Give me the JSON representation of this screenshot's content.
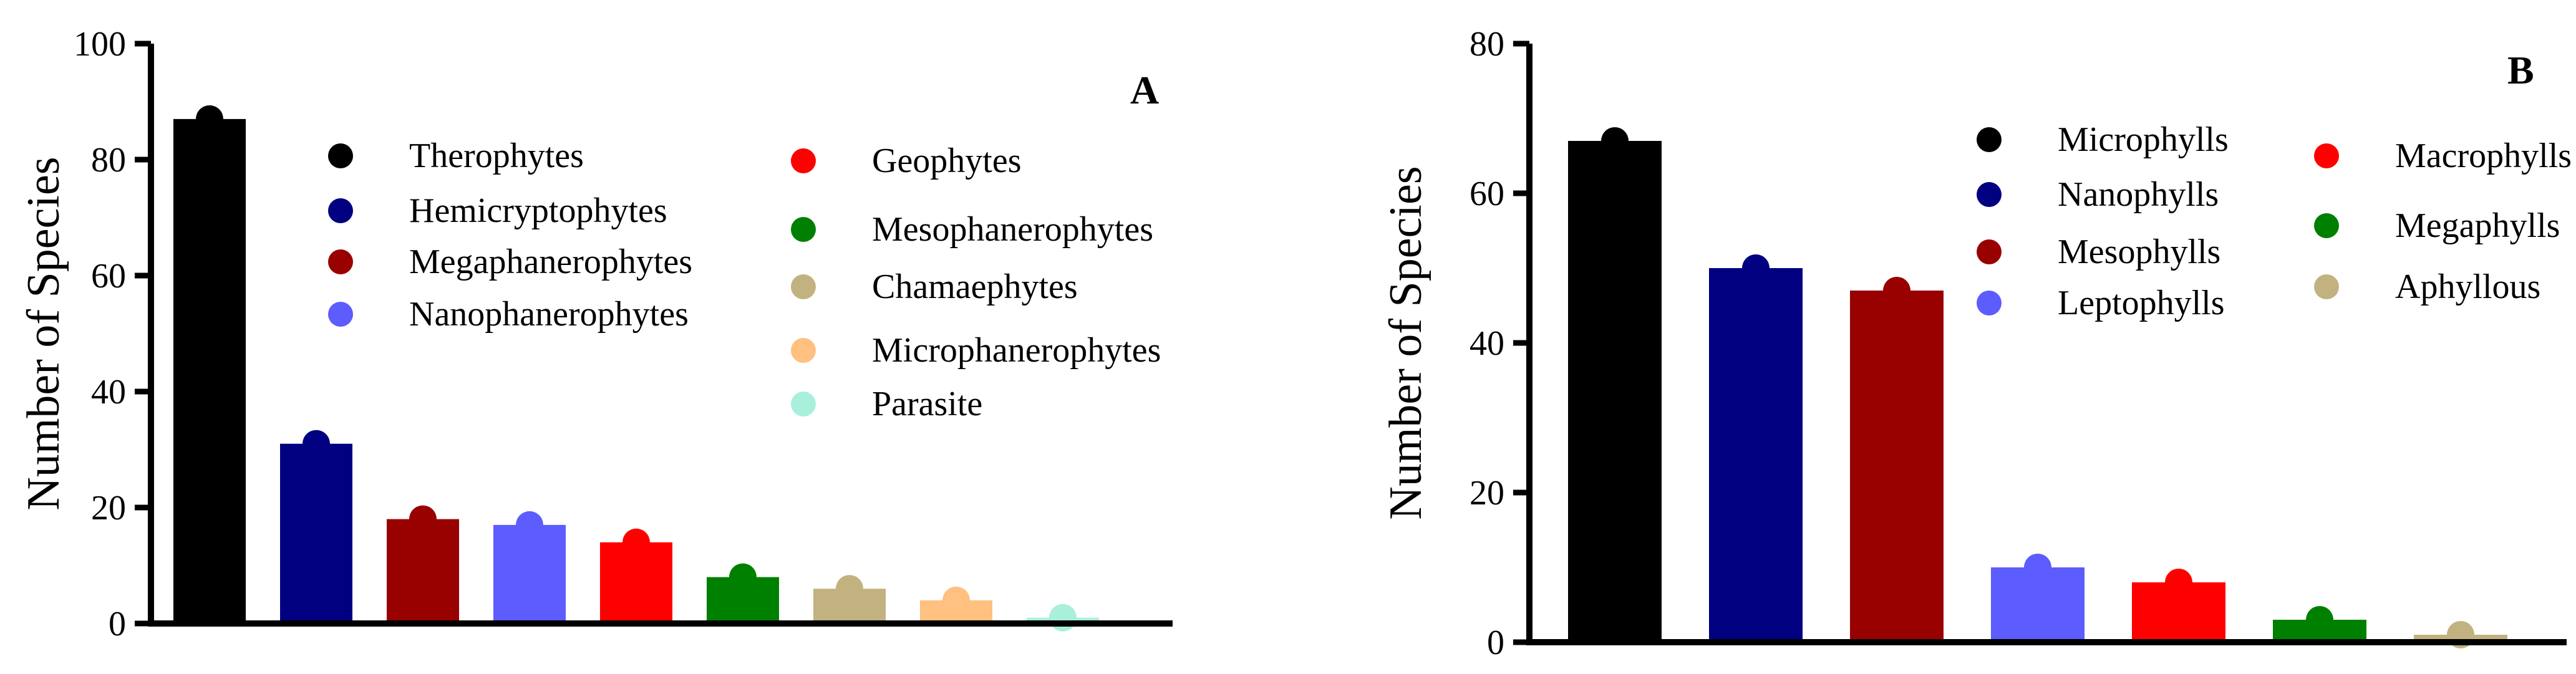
{
  "chart_data": [
    {
      "type": "bar",
      "panel_label": "A",
      "ylabel": "Number of Species",
      "ylim": [
        0,
        100
      ],
      "yticks": [
        0,
        20,
        40,
        60,
        80,
        100
      ],
      "grid": false,
      "categories": [
        "Therophytes",
        "Hemicryptophytes",
        "Megaphanerophytes",
        "Nanophanerophytes",
        "Geophytes",
        "Mesophanerophytes",
        "Chamaephytes",
        "Microphanerophytes",
        "Parasite"
      ],
      "values": [
        87,
        31,
        18,
        17,
        14,
        8,
        6,
        4,
        1
      ],
      "colors": [
        "#000000",
        "#000080",
        "#990000",
        "#5c5cff",
        "#ff0000",
        "#008000",
        "#c2b280",
        "#ffc080",
        "#a8f0dc"
      ]
    },
    {
      "type": "bar",
      "panel_label": "B",
      "ylabel": "Number of Species",
      "ylim": [
        0,
        80
      ],
      "yticks": [
        0,
        20,
        40,
        60,
        80
      ],
      "grid": false,
      "categories": [
        "Microphylls",
        "Nanophylls",
        "Mesophylls",
        "Leptophylls",
        "Macrophylls",
        "Megaphylls",
        "Aphyllous"
      ],
      "values": [
        67,
        50,
        47,
        10,
        8,
        3,
        1
      ],
      "colors": [
        "#000000",
        "#000080",
        "#990000",
        "#5c5cff",
        "#ff0000",
        "#008000",
        "#c2b280"
      ]
    }
  ]
}
